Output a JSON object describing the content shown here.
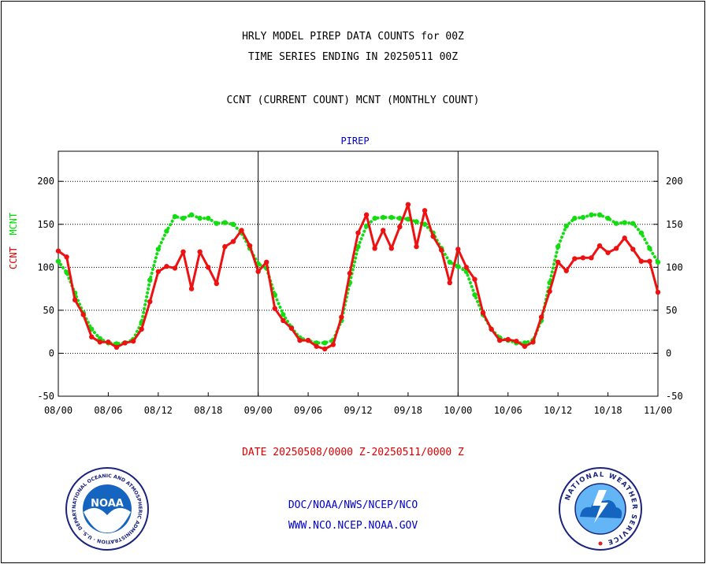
{
  "header": {
    "title_line1": "HRLY MODEL PIREP DATA COUNTS for 00Z",
    "title_line2": "TIME SERIES ENDING IN 20250511 00Z",
    "subtitle": "CCNT (CURRENT COUNT) MCNT (MONTHLY COUNT)"
  },
  "footer": {
    "date_range": "DATE 20250508/0000 Z-20250511/0000 Z",
    "org_line": "DOC/NOAA/NWS/NCEP/NCO",
    "url_line": "WWW.NCO.NCEP.NOAA.GOV"
  },
  "logos": {
    "noaa_text": "NOAA",
    "noaa_ring": "NATIONAL OCEANIC AND ATMOSPHERIC ADMINISTRATION · U.S. DEPARTMENT OF COMMERCE",
    "nws_ring": "NATIONAL WEATHER SERVICE"
  },
  "colors": {
    "ccnt": "#ee1111",
    "mcnt": "#11dd11",
    "plot_label": "#0000cc",
    "date_text": "#dd0000"
  },
  "chart_data": {
    "type": "line",
    "title": "PIREP",
    "ylabel_ccnt": "CCNT",
    "ylabel_mcnt": "MCNT",
    "ylim": [
      -50,
      235
    ],
    "yticks": [
      -50,
      0,
      50,
      100,
      150,
      200
    ],
    "xlim": [
      0,
      72
    ],
    "xticks": [
      0,
      6,
      12,
      18,
      24,
      30,
      36,
      42,
      48,
      54,
      60,
      66,
      72
    ],
    "xtick_labels": [
      "08/00",
      "08/06",
      "08/12",
      "08/18",
      "09/00",
      "09/06",
      "09/12",
      "09/18",
      "10/00",
      "10/06",
      "10/12",
      "10/18",
      "11/00"
    ],
    "day_dividers": [
      24,
      48
    ],
    "grid": "horizontal dotted at y ticks",
    "series": [
      {
        "name": "CCNT",
        "style": "solid",
        "x": [
          0,
          1,
          2,
          3,
          4,
          5,
          6,
          7,
          8,
          9,
          10,
          11,
          12,
          13,
          14,
          15,
          16,
          17,
          18,
          19,
          20,
          21,
          22,
          23,
          24,
          25,
          26,
          27,
          28,
          29,
          30,
          31,
          32,
          33,
          34,
          35,
          36,
          37,
          38,
          39,
          40,
          41,
          42,
          43,
          44,
          45,
          46,
          47,
          48,
          49,
          50,
          51,
          52,
          53,
          54,
          55,
          56,
          57,
          58,
          59,
          60,
          61,
          62,
          63,
          64,
          65,
          66,
          67,
          68,
          69,
          70,
          71,
          72
        ],
        "values": [
          119,
          112,
          62,
          45,
          19,
          13,
          13,
          7,
          12,
          14,
          28,
          60,
          95,
          101,
          99,
          118,
          75,
          118,
          100,
          81,
          124,
          130,
          143,
          125,
          95,
          106,
          52,
          38,
          29,
          15,
          15,
          8,
          5,
          10,
          42,
          93,
          140,
          161,
          122,
          143,
          122,
          147,
          173,
          124,
          166,
          136,
          120,
          82,
          121,
          100,
          86,
          47,
          28,
          15,
          16,
          14,
          8,
          13,
          42,
          72,
          106,
          96,
          110,
          111,
          111,
          125,
          117,
          122,
          134,
          121,
          107,
          107,
          71
        ]
      },
      {
        "name": "MCNT",
        "style": "dotted",
        "x": [
          0,
          1,
          2,
          3,
          4,
          5,
          6,
          7,
          8,
          9,
          10,
          11,
          12,
          13,
          14,
          15,
          16,
          17,
          18,
          19,
          20,
          21,
          22,
          23,
          24,
          25,
          26,
          27,
          28,
          29,
          30,
          31,
          32,
          33,
          34,
          35,
          36,
          37,
          38,
          39,
          40,
          41,
          42,
          43,
          44,
          45,
          46,
          47,
          48,
          49,
          50,
          51,
          52,
          53,
          54,
          55,
          56,
          57,
          58,
          59,
          60,
          61,
          62,
          63,
          64,
          65,
          66,
          67,
          68,
          69,
          70,
          71,
          72
        ],
        "values": [
          107,
          94,
          70,
          47,
          28,
          17,
          12,
          11,
          12,
          16,
          36,
          85,
          121,
          142,
          159,
          157,
          161,
          157,
          157,
          151,
          152,
          150,
          140,
          122,
          104,
          99,
          68,
          45,
          30,
          18,
          15,
          12,
          12,
          15,
          38,
          82,
          124,
          148,
          157,
          158,
          158,
          157,
          156,
          153,
          150,
          140,
          122,
          106,
          101,
          95,
          68,
          45,
          28,
          18,
          15,
          12,
          12,
          15,
          38,
          82,
          124,
          148,
          157,
          158,
          161,
          161,
          157,
          151,
          152,
          151,
          140,
          122,
          106
        ]
      }
    ]
  }
}
